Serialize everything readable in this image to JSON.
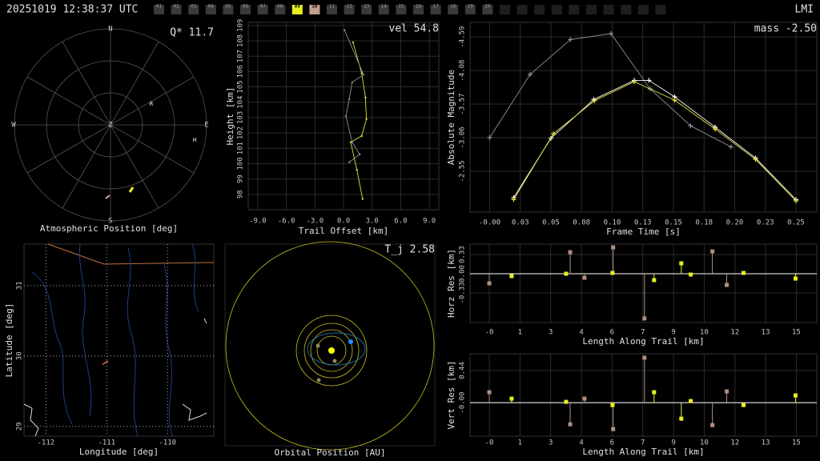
{
  "header": {
    "timestamp": "20251019 12:38:37 UTC",
    "station": "LMI",
    "frames": [
      {
        "label": "01",
        "color": "#3a3a3a"
      },
      {
        "label": "02",
        "color": "#3a3a3a"
      },
      {
        "label": "03",
        "color": "#3a3a3a"
      },
      {
        "label": "04",
        "color": "#3a3a3a"
      },
      {
        "label": "05",
        "color": "#3a3a3a"
      },
      {
        "label": "06",
        "color": "#3a3a3a"
      },
      {
        "label": "07",
        "color": "#3a3a3a"
      },
      {
        "label": "08",
        "color": "#3a3a3a"
      },
      {
        "label": "09",
        "color": "#e8f020"
      },
      {
        "label": "10",
        "color": "#c0a090"
      },
      {
        "label": "11",
        "color": "#3a3a3a"
      },
      {
        "label": "12",
        "color": "#3a3a3a"
      },
      {
        "label": "13",
        "color": "#3a3a3a"
      },
      {
        "label": "14",
        "color": "#3a3a3a"
      },
      {
        "label": "15",
        "color": "#3a3a3a"
      },
      {
        "label": "16",
        "color": "#3a3a3a"
      },
      {
        "label": "17",
        "color": "#3a3a3a"
      },
      {
        "label": "18",
        "color": "#3a3a3a"
      },
      {
        "label": "19",
        "color": "#3a3a3a"
      },
      {
        "label": "20",
        "color": "#3a3a3a"
      },
      {
        "label": null,
        "color": "#1e1e1e"
      },
      {
        "label": null,
        "color": "#1e1e1e"
      },
      {
        "label": null,
        "color": "#1e1e1e"
      },
      {
        "label": null,
        "color": "#1e1e1e"
      },
      {
        "label": null,
        "color": "#1e1e1e"
      },
      {
        "label": null,
        "color": "#1e1e1e"
      },
      {
        "label": null,
        "color": "#1e1e1e"
      },
      {
        "label": null,
        "color": "#1e1e1e"
      },
      {
        "label": null,
        "color": "#1e1e1e"
      },
      {
        "label": null,
        "color": "#1e1e1e"
      }
    ]
  },
  "chart_data": [
    {
      "type": "polar",
      "title": "Atmospheric Position [deg]",
      "annotation": "Q* 11.7",
      "directions": {
        "north": "N",
        "east": "E",
        "south": "S",
        "west": "W",
        "zenith": "Z"
      },
      "stations": [
        "R",
        "H"
      ]
    },
    {
      "type": "line",
      "annotation": "vel 54.8",
      "xlabel": "Trail Offset [km]",
      "ylabel": "Height [km]",
      "grid": true,
      "xlim": [
        -10,
        10
      ],
      "ylim": [
        97,
        109.2
      ],
      "xticks": [
        {
          "value": -9,
          "label": "-9.0"
        },
        {
          "value": -6,
          "label": "-6.0"
        },
        {
          "value": -3,
          "label": "-3.0"
        },
        {
          "value": 0,
          "label": "0.0"
        },
        {
          "value": 3,
          "label": "3.0"
        },
        {
          "value": 6,
          "label": "6.0"
        },
        {
          "value": 9,
          "label": "9.0"
        }
      ],
      "yticks": [
        98,
        99,
        100,
        101,
        102,
        103,
        104,
        105,
        106,
        107,
        108,
        109
      ],
      "series": [
        {
          "color": "#e8e040",
          "x": [
            1.0,
            1.9,
            2.3,
            2.4,
            1.9,
            0.75,
            1.4,
            2.0
          ],
          "values": [
            107.9,
            105.9,
            104.3,
            102.9,
            101.8,
            101.4,
            99.6,
            97.7
          ]
        },
        {
          "color": "#909090",
          "x": [
            0.1,
            2.1,
            0.9,
            0.6,
            0.25,
            0.9,
            1.7,
            0.6
          ],
          "values": [
            108.7,
            105.8,
            105.3,
            104.2,
            103.1,
            101.4,
            100.6,
            100.1
          ]
        }
      ]
    },
    {
      "type": "line",
      "annotation": "mass -2.50",
      "xlabel": "Frame Time [s]",
      "ylabel": "Absolute Magnitude",
      "grid": true,
      "xlim": [
        -0.016,
        0.267
      ],
      "ylim": [
        -1.93,
        -4.81
      ],
      "xticks": [
        {
          "value": 0,
          "label": "-0.00"
        },
        {
          "value": 0.025,
          "label": "0.03"
        },
        {
          "value": 0.05,
          "label": "0.05"
        },
        {
          "value": 0.075,
          "label": "0.08"
        },
        {
          "value": 0.1,
          "label": "0.10"
        },
        {
          "value": 0.125,
          "label": "0.13"
        },
        {
          "value": 0.15,
          "label": "0.15"
        },
        {
          "value": 0.175,
          "label": "0.18"
        },
        {
          "value": 0.2,
          "label": "0.20"
        },
        {
          "value": 0.225,
          "label": "0.23"
        },
        {
          "value": 0.25,
          "label": "0.25"
        }
      ],
      "yticks": [
        -4.59,
        -4.08,
        -3.57,
        -3.06,
        -2.55
      ],
      "series": [
        {
          "color": "#909090",
          "x": [
            0,
            0.033,
            0.066,
            0.099,
            0.131,
            0.164,
            0.197
          ],
          "values": [
            -3.06,
            -4.02,
            -4.55,
            -4.64,
            -3.8,
            -3.24,
            -2.92
          ]
        },
        {
          "color": "#ffffff",
          "x": [
            0.0196,
            0.05,
            0.085,
            0.118,
            0.13,
            0.151,
            0.184,
            0.217,
            0.25
          ],
          "values": [
            -2.15,
            -3.05,
            -3.64,
            -3.93,
            -3.93,
            -3.68,
            -3.22,
            -2.75,
            -2.12
          ]
        },
        {
          "color": "#e8e040",
          "x": [
            0.0196,
            0.052,
            0.0855,
            0.118,
            0.151,
            0.184,
            0.217,
            0.25
          ],
          "values": [
            -2.12,
            -3.12,
            -3.62,
            -3.91,
            -3.63,
            -3.19,
            -2.73,
            -2.1
          ]
        }
      ]
    },
    {
      "type": "map",
      "xlabel": "Longitude [deg]",
      "ylabel": "Latitude [deg]",
      "grid": true,
      "xlim": [
        -112.36,
        -109.24
      ],
      "ylim": [
        28.86,
        31.59
      ],
      "xticks": [
        -112,
        -111,
        -110
      ],
      "yticks": [
        29,
        30,
        31
      ],
      "series": [
        {
          "color": "#e07040",
          "x": [
            -111.07,
            -110.98
          ],
          "values": [
            29.88,
            29.93
          ]
        }
      ]
    },
    {
      "type": "orbit",
      "title": "Orbital Position [AU]",
      "annotation": "T_j 2.58"
    },
    {
      "type": "stem",
      "xlabel": "Length Along Trail [km]",
      "ylabel": "Horz Res [km]",
      "grid": true,
      "xlim": [
        -0.94,
        16.0
      ],
      "ylim": [
        -0.84,
        0.51
      ],
      "xticks": [
        {
          "value": 0,
          "label": "-0"
        },
        {
          "value": 1.5,
          "label": "1"
        },
        3,
        {
          "value": 4.5,
          "label": "4"
        },
        6,
        {
          "value": 7.5,
          "label": "7"
        },
        9,
        {
          "value": 10.5,
          "label": "10"
        },
        12,
        {
          "value": 13.5,
          "label": "13"
        },
        15
      ],
      "yticks": [
        {
          "value": -0.33,
          "label": "-0.33"
        },
        {
          "value": 0,
          "label": "0.00"
        },
        0.33
      ],
      "series": [
        {
          "color": "#b09080",
          "x": [
            0,
            3.95,
            4.65,
            6.05,
            7.58,
            10.9,
            11.6
          ],
          "values": [
            -0.165,
            0.371,
            -0.069,
            0.454,
            -0.77,
            0.385,
            -0.193
          ]
        },
        {
          "color": "#e8f020",
          "x": [
            1.09,
            3.75,
            6.02,
            8.05,
            9.38,
            9.84,
            12.42,
            14.96
          ],
          "values": [
            -0.041,
            0,
            0.014,
            -0.11,
            0.179,
            -0.014,
            0.014,
            -0.083
          ]
        }
      ]
    },
    {
      "type": "stem",
      "xlabel": "Length Along Trail [km]",
      "ylabel": "Vert Res [km]",
      "grid": true,
      "xlim": [
        -0.94,
        16.0
      ],
      "ylim": [
        -0.46,
        0.67
      ],
      "xticks": [
        {
          "value": 0,
          "label": "-0"
        },
        {
          "value": 1.5,
          "label": "1"
        },
        3,
        {
          "value": 4.5,
          "label": "4"
        },
        6,
        {
          "value": 7.5,
          "label": "7"
        },
        9,
        {
          "value": 10.5,
          "label": "10"
        },
        12,
        {
          "value": 13.5,
          "label": "13"
        },
        15
      ],
      "yticks": [
        {
          "value": 0,
          "label": "-0.00"
        },
        0.44
      ],
      "series": [
        {
          "color": "#b09080",
          "x": [
            0,
            3.95,
            4.65,
            6.05,
            7.58,
            10.9,
            11.6
          ],
          "values": [
            0.143,
            -0.297,
            0.055,
            -0.363,
            0.616,
            -0.308,
            0.154
          ]
        },
        {
          "color": "#e8f020",
          "x": [
            1.09,
            3.75,
            6.02,
            8.05,
            9.38,
            9.84,
            12.42,
            14.96
          ],
          "values": [
            0.055,
            0.011,
            -0.033,
            0.143,
            -0.22,
            0.022,
            -0.033,
            0.099
          ]
        }
      ]
    }
  ]
}
